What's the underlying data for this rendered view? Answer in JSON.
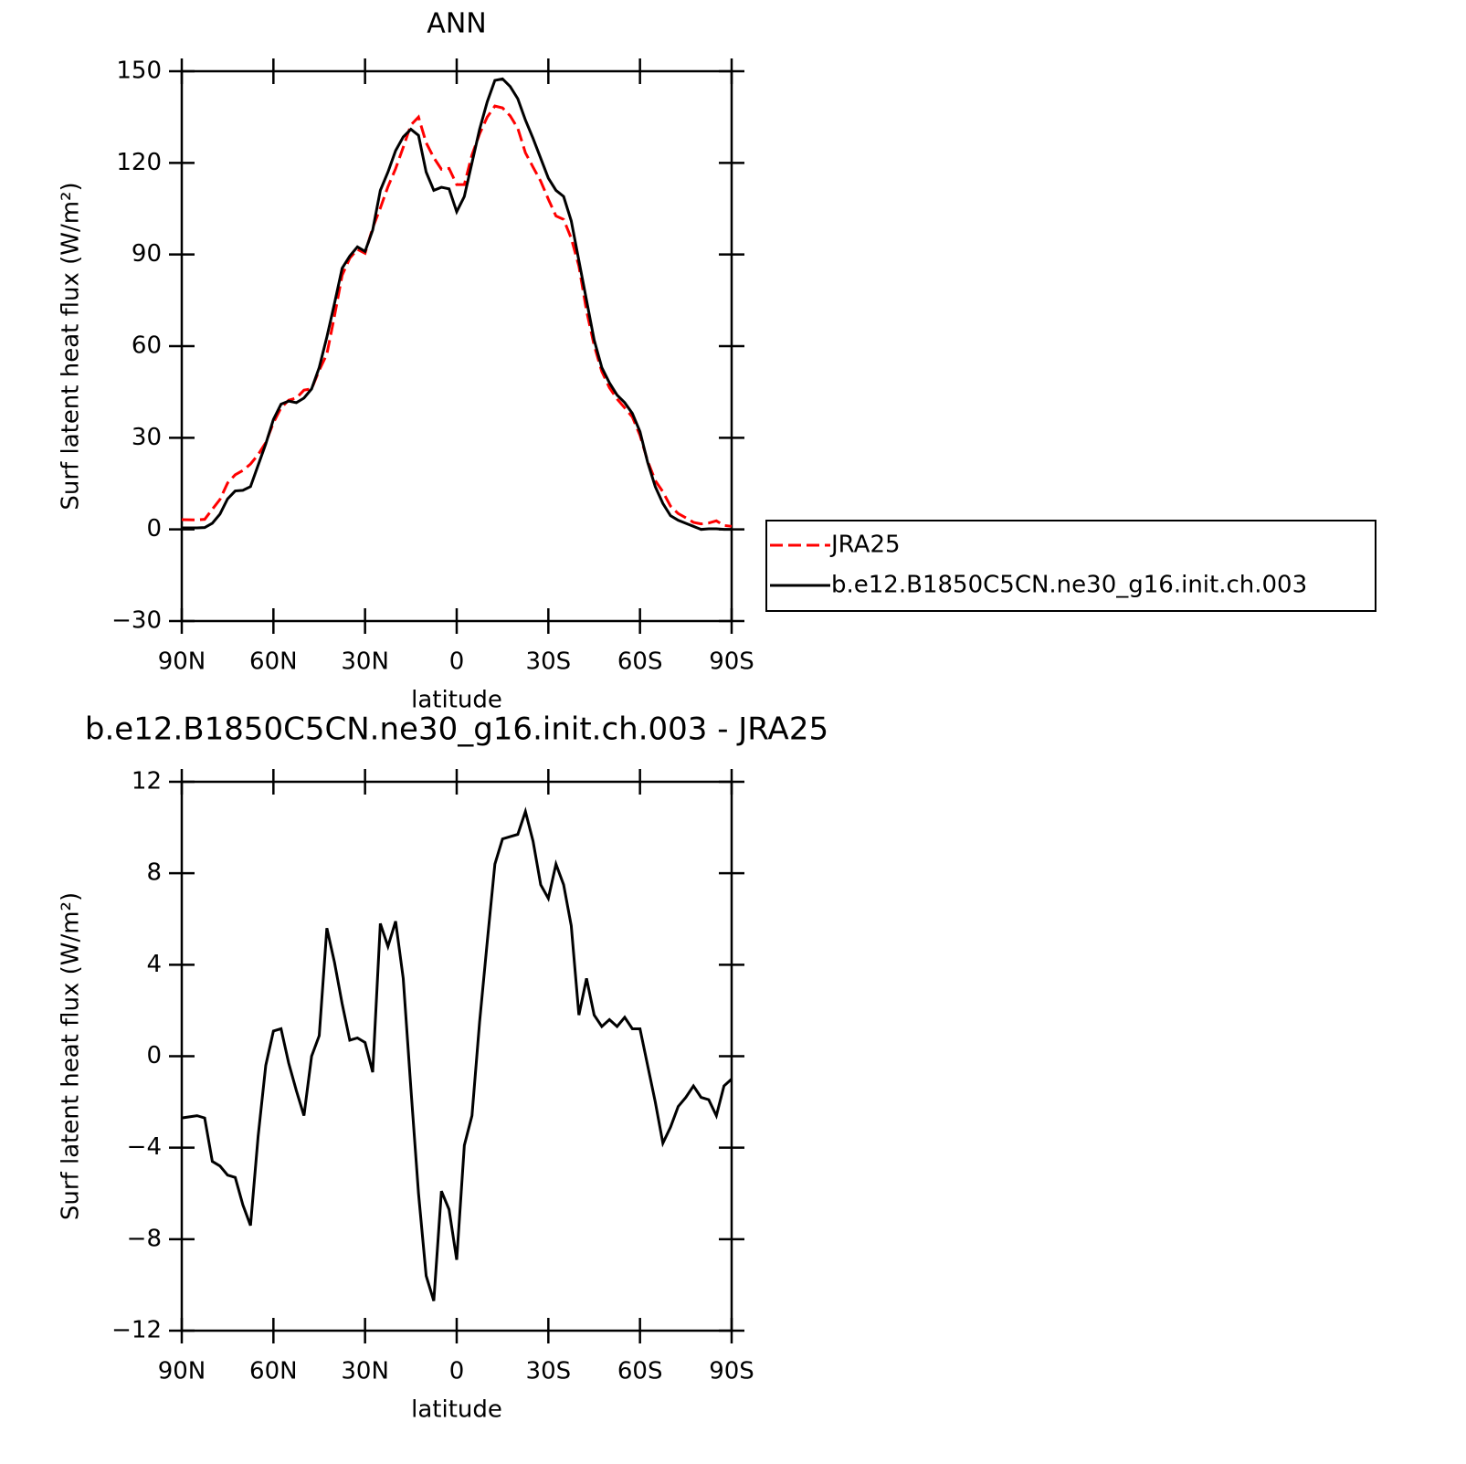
{
  "chart_data": [
    {
      "type": "line",
      "title": "ANN",
      "x_label": "latitude",
      "y_label": "Surf latent heat flux (W/m²)",
      "x": [
        90,
        87.5,
        85,
        82.5,
        80,
        77.5,
        75,
        72.5,
        70,
        67.5,
        65,
        62.5,
        60,
        57.5,
        55,
        52.5,
        50,
        47.5,
        45,
        42.5,
        40,
        37.5,
        35,
        32.5,
        30,
        27.5,
        25,
        22.5,
        20,
        17.5,
        15,
        12.5,
        10,
        7.5,
        5,
        2.5,
        0,
        -2.5,
        -5,
        -7.5,
        -10,
        -12.5,
        -15,
        -17.5,
        -20,
        -22.5,
        -25,
        -27.5,
        -30,
        -32.5,
        -35,
        -37.5,
        -40,
        -42.5,
        -45,
        -47.5,
        -50,
        -52.5,
        -55,
        -57.5,
        -60,
        -62.5,
        -65,
        -67.5,
        -70,
        -72.5,
        -75,
        -77.5,
        -80,
        -82.5,
        -85,
        -87.5,
        -90
      ],
      "series": [
        {
          "name": "JRA25",
          "color": "#ff0000",
          "linestyle": "dashed",
          "values": [
            3.2,
            3.15,
            3.1,
            3.3,
            6.6,
            9.8,
            15.2,
            17.9,
            19.3,
            21.4,
            24.5,
            28.4,
            34.9,
            39.8,
            42.3,
            43,
            45.6,
            46,
            52.1,
            57.4,
            69.9,
            83.2,
            88.8,
            91.7,
            90.4,
            98.7,
            105.2,
            112.2,
            118.1,
            125.1,
            132.4,
            135,
            126.6,
            121.7,
            117.9,
            118.2,
            112.9,
            112.9,
            122.6,
            129.5,
            135,
            138.6,
            138,
            135.4,
            131.3,
            123.3,
            118.6,
            114,
            108.1,
            102.6,
            101.5,
            95.3,
            86.2,
            71.6,
            60.2,
            51.7,
            46.4,
            42.7,
            39.8,
            36.8,
            30.8,
            22.4,
            16,
            12.3,
            7.6,
            5.2,
            3.8,
            2.3,
            1.8,
            2.1,
            2.8,
            1.3,
            1.0
          ]
        },
        {
          "name": "b.e12.B1850C5CN.ne30_g16.init.ch.003",
          "color": "#000000",
          "linestyle": "solid",
          "values": [
            0.5,
            0.5,
            0.5,
            0.6,
            2,
            5,
            10,
            12.6,
            12.8,
            14,
            21,
            28,
            36,
            41,
            42,
            41.5,
            43,
            46,
            53,
            63,
            74,
            85.5,
            89.5,
            92.5,
            91,
            98,
            111,
            117,
            124,
            128.5,
            131,
            129,
            117,
            111,
            112,
            111.5,
            104,
            109,
            120,
            131,
            140,
            147,
            147.5,
            145,
            141,
            134,
            128,
            121.5,
            115,
            111,
            109,
            101,
            88,
            75,
            62,
            53,
            48,
            44,
            41.5,
            38,
            32,
            22,
            14,
            8.5,
            4.5,
            3,
            2,
            1,
            0,
            0.2,
            0.2,
            0,
            0
          ]
        }
      ],
      "xlim": [
        90,
        -90
      ],
      "xticks": [
        {
          "value": 90,
          "label": "90N"
        },
        {
          "value": 60,
          "label": "60N"
        },
        {
          "value": 30,
          "label": "30N"
        },
        0,
        {
          "value": -30,
          "label": "30S"
        },
        {
          "value": -60,
          "label": "60S"
        },
        {
          "value": -90,
          "label": "90S"
        }
      ],
      "ylim": [
        -30,
        150
      ],
      "yticks": [
        {
          "value": -30,
          "label": "−30"
        },
        0,
        30,
        60,
        90,
        120,
        150
      ],
      "legend": "right"
    },
    {
      "type": "line",
      "title": "b.e12.B1850C5CN.ne30_g16.init.ch.003 - JRA25",
      "x_label": "latitude",
      "y_label": "Surf latent heat flux (W/m²)",
      "x": [
        90,
        87.5,
        85,
        82.5,
        80,
        77.5,
        75,
        72.5,
        70,
        67.5,
        65,
        62.5,
        60,
        57.5,
        55,
        52.5,
        50,
        47.5,
        45,
        42.5,
        40,
        37.5,
        35,
        32.5,
        30,
        27.5,
        25,
        22.5,
        20,
        17.5,
        15,
        12.5,
        10,
        7.5,
        5,
        2.5,
        0,
        -2.5,
        -5,
        -7.5,
        -10,
        -12.5,
        -15,
        -17.5,
        -20,
        -22.5,
        -25,
        -27.5,
        -30,
        -32.5,
        -35,
        -37.5,
        -40,
        -42.5,
        -45,
        -47.5,
        -50,
        -52.5,
        -55,
        -57.5,
        -60,
        -62.5,
        -65,
        -67.5,
        -70,
        -72.5,
        -75,
        -77.5,
        -80,
        -82.5,
        -85,
        -87.5,
        -90
      ],
      "series": [
        {
          "color": "#000000",
          "linestyle": "solid",
          "values": [
            -2.7,
            -2.65,
            -2.6,
            -2.7,
            -4.6,
            -4.8,
            -5.2,
            -5.3,
            -6.5,
            -7.4,
            -3.5,
            -0.4,
            1.1,
            1.2,
            -0.3,
            -1.5,
            -2.6,
            0,
            0.9,
            5.6,
            4.1,
            2.3,
            0.7,
            0.8,
            0.6,
            -0.7,
            5.8,
            4.8,
            5.9,
            3.4,
            -1.4,
            -6,
            -9.6,
            -10.7,
            -5.9,
            -6.7,
            -8.9,
            -3.9,
            -2.6,
            1.5,
            5,
            8.4,
            9.5,
            9.6,
            9.7,
            10.7,
            9.4,
            7.5,
            6.9,
            8.4,
            7.5,
            5.7,
            1.8,
            3.4,
            1.8,
            1.3,
            1.6,
            1.3,
            1.7,
            1.2,
            1.2,
            -0.4,
            -2,
            -3.8,
            -3.1,
            -2.2,
            -1.8,
            -1.3,
            -1.8,
            -1.9,
            -2.6,
            -1.3,
            -1.0
          ]
        }
      ],
      "xlim": [
        90,
        -90
      ],
      "xticks": [
        {
          "value": 90,
          "label": "90N"
        },
        {
          "value": 60,
          "label": "60N"
        },
        {
          "value": 30,
          "label": "30N"
        },
        0,
        {
          "value": -30,
          "label": "30S"
        },
        {
          "value": -60,
          "label": "60S"
        },
        {
          "value": -90,
          "label": "90S"
        }
      ],
      "ylim": [
        -12,
        12
      ],
      "yticks": [
        {
          "value": -12,
          "label": "−12"
        },
        {
          "value": -8,
          "label": "−8"
        },
        {
          "value": -4,
          "label": "−4"
        },
        0,
        4,
        8,
        12
      ]
    }
  ]
}
